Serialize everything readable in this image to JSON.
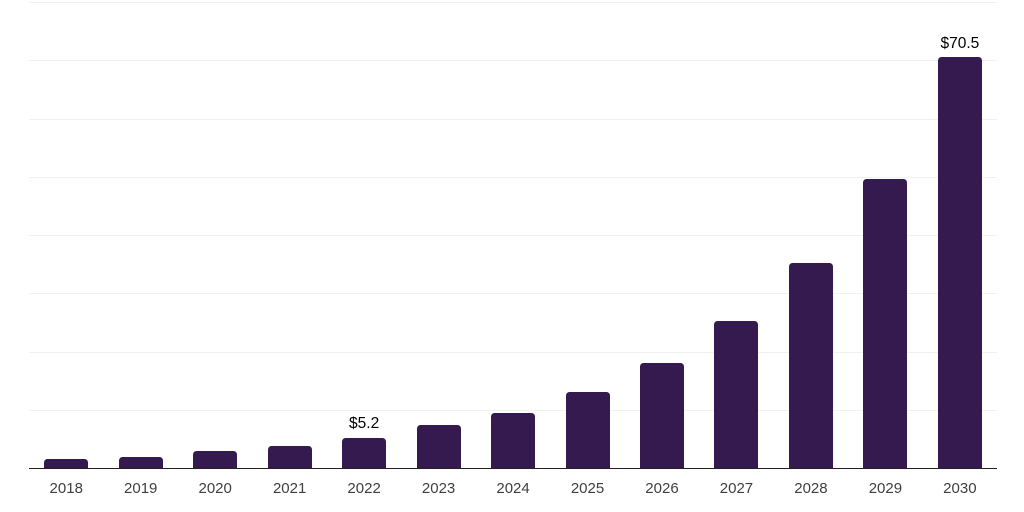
{
  "colors": {
    "background": "#ffffff",
    "bar": "#341a4e",
    "gridline": "#f1f1f1",
    "axis_line": "#212121",
    "tick_label": "#3f3f3f",
    "value_label": "#000000"
  },
  "chart_data": {
    "type": "bar",
    "title": "",
    "xlabel": "",
    "ylabel": "",
    "categories": [
      "2018",
      "2019",
      "2020",
      "2021",
      "2022",
      "2023",
      "2024",
      "2025",
      "2026",
      "2027",
      "2028",
      "2029",
      "2030"
    ],
    "values": [
      1.5,
      1.9,
      2.9,
      3.8,
      5.2,
      7.3,
      9.5,
      13.1,
      18.0,
      25.2,
      35.2,
      49.7,
      70.5
    ],
    "point_labels": [
      "",
      "",
      "",
      "",
      "$5.2",
      "",
      "",
      "",
      "",
      "",
      "",
      "",
      "$70.5"
    ],
    "ylim": [
      0,
      80
    ],
    "gridline_step": 10,
    "grid": "horizontal-only",
    "y_axis_tick_labels_visible": false,
    "legend": "none",
    "bar_corner": "rounded-top"
  }
}
